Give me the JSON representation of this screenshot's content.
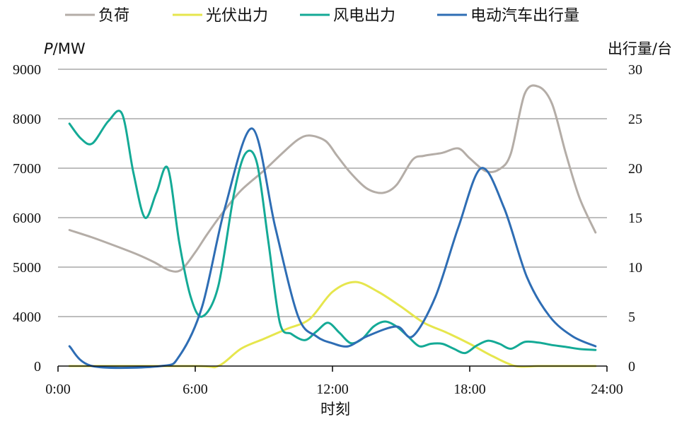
{
  "chart_data": {
    "type": "line",
    "title": "",
    "xlabel": "时刻",
    "ylabel_left_var": "P",
    "ylabel_left_unit": "/MW",
    "ylabel_right": "出行量/台",
    "x_tick_labels": [
      "0:00",
      "6:00",
      "12:00",
      "18:00",
      "24:00"
    ],
    "x_ticks": [
      0,
      6,
      12,
      18,
      24
    ],
    "xlim": [
      0,
      24
    ],
    "ylim_left": [
      0,
      9000
    ],
    "ylim_right": [
      0,
      30
    ],
    "y_left_ticks": [
      0,
      4000,
      5000,
      6000,
      7000,
      8000,
      9000
    ],
    "y_right_ticks": [
      0,
      5,
      10,
      15,
      20,
      25,
      30
    ],
    "y_left_scale": "segmented (0 to 4000 spans one gridline interval, above 4000 linear in steps of 1000)",
    "grid": "horizontal",
    "legend_position": "top",
    "series": [
      {
        "name": "负荷",
        "axis": "left",
        "color": "#b4ada7",
        "x": [
          0.5,
          1.5,
          2.5,
          3.5,
          4.2,
          4.9,
          5.4,
          6.0,
          6.5,
          7.2,
          8.0,
          9.0,
          9.8,
          10.5,
          11.0,
          11.7,
          12.2,
          12.8,
          13.5,
          14.2,
          14.8,
          15.5,
          16.0,
          16.8,
          17.5,
          18.0,
          18.7,
          19.3,
          19.8,
          20.4,
          21.0,
          21.6,
          22.2,
          22.8,
          23.5
        ],
        "y": [
          5750,
          5600,
          5430,
          5250,
          5100,
          4930,
          4950,
          5300,
          5650,
          6100,
          6550,
          6950,
          7300,
          7580,
          7660,
          7550,
          7250,
          6900,
          6590,
          6500,
          6660,
          7170,
          7250,
          7310,
          7400,
          7200,
          6940,
          6980,
          7300,
          8500,
          8650,
          8300,
          7300,
          6400,
          5700
        ]
      },
      {
        "name": "光伏出力",
        "axis": "left",
        "color": "#e6e64d",
        "x": [
          0.5,
          6.0,
          7.0,
          8.0,
          9.0,
          10.0,
          11.0,
          12.0,
          13.0,
          14.0,
          15.0,
          16.0,
          17.0,
          18.0,
          19.0,
          20.0,
          21.0,
          22.0,
          23.5
        ],
        "y": [
          0,
          0,
          0,
          1400,
          2200,
          3000,
          3800,
          4500,
          4700,
          4500,
          4200,
          3500,
          2700,
          1800,
          800,
          0,
          0,
          0,
          0
        ]
      },
      {
        "name": "风电出力",
        "axis": "left",
        "color": "#14aa96",
        "x": [
          0.5,
          1.0,
          1.5,
          2.2,
          2.8,
          3.3,
          3.8,
          4.3,
          4.8,
          5.3,
          5.8,
          6.3,
          7.0,
          7.7,
          8.2,
          8.7,
          9.2,
          9.7,
          10.2,
          10.8,
          11.3,
          11.8,
          12.3,
          12.8,
          13.3,
          13.8,
          14.3,
          14.8,
          15.3,
          15.8,
          16.3,
          16.8,
          17.3,
          17.8,
          18.3,
          18.8,
          19.3,
          19.8,
          20.4,
          21.0,
          21.6,
          22.2,
          22.8,
          23.5
        ],
        "y": [
          7900,
          7600,
          7500,
          7950,
          8100,
          6900,
          6000,
          6500,
          7000,
          5500,
          4400,
          4000,
          4600,
          6500,
          7300,
          7100,
          5500,
          3500,
          2600,
          2100,
          2800,
          3500,
          2700,
          1850,
          2200,
          3200,
          3600,
          3200,
          2400,
          1600,
          1800,
          1800,
          1400,
          1050,
          1650,
          2050,
          1800,
          1400,
          1950,
          1900,
          1700,
          1550,
          1380,
          1300
        ]
      },
      {
        "name": "电动汽车出行量",
        "axis": "right",
        "color": "#2e6db4",
        "x": [
          0.5,
          1.5,
          4.5,
          5.3,
          6.3,
          7.3,
          8.5,
          9.5,
          10.5,
          11.3,
          12.0,
          12.7,
          13.5,
          14.8,
          15.5,
          16.5,
          17.5,
          18.5,
          19.5,
          20.5,
          21.5,
          22.5,
          23.5
        ],
        "y": [
          2.0,
          0,
          0,
          1.0,
          6.0,
          16.0,
          24.0,
          14.0,
          5.0,
          3.0,
          2.3,
          2.0,
          3.0,
          4.0,
          3.0,
          7.0,
          14.0,
          20.0,
          16.0,
          9.0,
          5.0,
          3.0,
          2.0
        ]
      }
    ]
  }
}
